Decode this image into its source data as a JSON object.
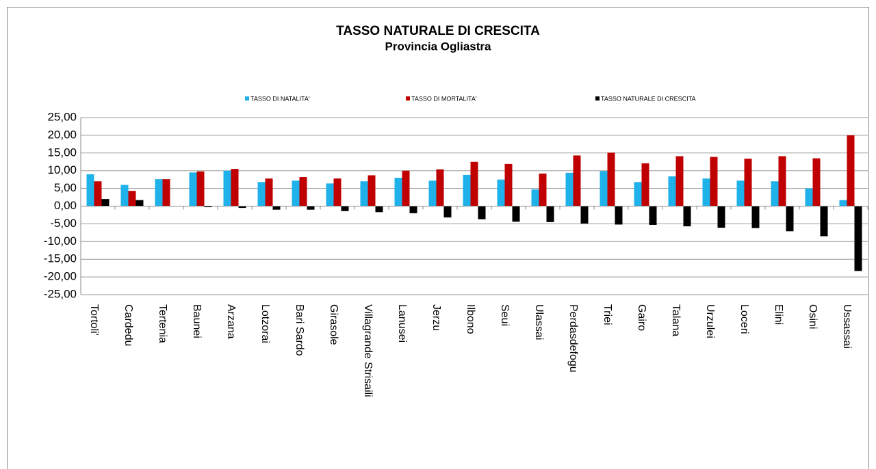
{
  "chart_data": {
    "type": "bar",
    "title": "TASSO NATURALE DI CRESCITA",
    "subtitle": "Provincia Ogliastra",
    "categories": [
      "Tortoli'",
      "Cardedu",
      "Tertenia",
      "Baunei",
      "Arzana",
      "Lotzorai",
      "Bari Sardo",
      "Girasole",
      "Villagrande Strisaili",
      "Lanusei",
      "Jerzu",
      "Ilbono",
      "Seui",
      "Ulassai",
      "Perdasdefogu",
      "Triei",
      "Gairo",
      "Talana",
      "Urzulei",
      "Loceri",
      "Elini",
      "Osini",
      "Ussassai"
    ],
    "series": [
      {
        "name": "TASSO DI NATALITA'",
        "color": "#1fb1ea",
        "values": [
          9.0,
          6.0,
          7.6,
          9.5,
          10.0,
          6.8,
          7.2,
          6.4,
          7.0,
          8.0,
          7.2,
          8.8,
          7.5,
          4.7,
          9.4,
          9.9,
          6.8,
          8.4,
          7.8,
          7.2,
          7.0,
          5.0,
          1.7
        ]
      },
      {
        "name": "TASSO DI MORTALITA'",
        "color": "#c00000",
        "values": [
          7.0,
          4.3,
          7.6,
          9.8,
          10.5,
          7.8,
          8.2,
          7.8,
          8.7,
          10.0,
          10.4,
          12.5,
          11.9,
          9.2,
          14.3,
          15.1,
          12.1,
          14.1,
          13.9,
          13.4,
          14.1,
          13.5,
          20.0
        ]
      },
      {
        "name": "TASSO NATURALE DI CRESCITA",
        "color": "#000000",
        "values": [
          2.0,
          1.7,
          0.0,
          -0.3,
          -0.5,
          -1.0,
          -1.0,
          -1.4,
          -1.7,
          -2.0,
          -3.2,
          -3.7,
          -4.4,
          -4.5,
          -4.9,
          -5.2,
          -5.3,
          -5.7,
          -6.1,
          -6.2,
          -7.1,
          -8.5,
          -18.3
        ]
      }
    ],
    "ylim": [
      -25,
      25
    ],
    "yticks": [
      {
        "value": 25,
        "label": "25,00"
      },
      {
        "value": 20,
        "label": "20,00"
      },
      {
        "value": 15,
        "label": "15,00"
      },
      {
        "value": 10,
        "label": "10,00"
      },
      {
        "value": 5,
        "label": "5,00"
      },
      {
        "value": 0,
        "label": "0,00"
      },
      {
        "value": -5,
        "label": "-5,00"
      },
      {
        "value": -10,
        "label": "-10,00"
      },
      {
        "value": -15,
        "label": "-15,00"
      },
      {
        "value": -20,
        "label": "-20,00"
      },
      {
        "value": -25,
        "label": "-25,00"
      }
    ],
    "grid": true,
    "legend": "top"
  }
}
